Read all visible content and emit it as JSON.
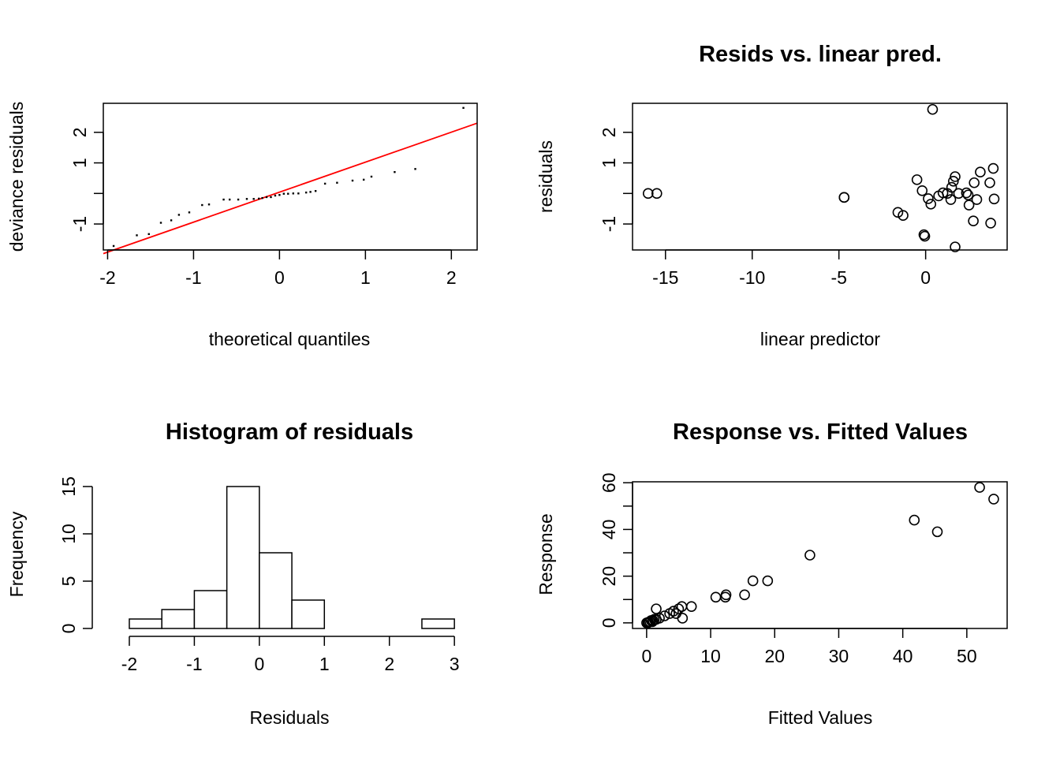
{
  "chart_data": [
    {
      "type": "scatter",
      "title": "",
      "xlabel": "theoretical quantiles",
      "ylabel": "deviance residuals",
      "xlim": [
        -2.05,
        2.3
      ],
      "ylim": [
        -1.85,
        2.95
      ],
      "x_ticks": [
        {
          "v": -2,
          "t": "-2"
        },
        {
          "v": -1,
          "t": "-1"
        },
        {
          "v": 0,
          "t": "0"
        },
        {
          "v": 1,
          "t": "1"
        },
        {
          "v": 2,
          "t": "2"
        }
      ],
      "y_ticks": [
        {
          "v": -1,
          "t": "-1"
        },
        {
          "v": 0,
          "t": ""
        },
        {
          "v": 1,
          "t": "1"
        },
        {
          "v": 2,
          "t": "2"
        }
      ],
      "points": [
        [
          -1.93,
          -1.72
        ],
        [
          -1.66,
          -1.37
        ],
        [
          -1.52,
          -1.33
        ],
        [
          -1.38,
          -0.96
        ],
        [
          -1.26,
          -0.88
        ],
        [
          -1.17,
          -0.7
        ],
        [
          -1.05,
          -0.62
        ],
        [
          -0.9,
          -0.38
        ],
        [
          -0.82,
          -0.36
        ],
        [
          -0.65,
          -0.2
        ],
        [
          -0.58,
          -0.2
        ],
        [
          -0.48,
          -0.2
        ],
        [
          -0.38,
          -0.18
        ],
        [
          -0.3,
          -0.18
        ],
        [
          -0.24,
          -0.17
        ],
        [
          -0.2,
          -0.15
        ],
        [
          -0.15,
          -0.12
        ],
        [
          -0.1,
          -0.12
        ],
        [
          -0.05,
          -0.07
        ],
        [
          0.0,
          -0.05
        ],
        [
          0.05,
          -0.01
        ],
        [
          0.1,
          -0.01
        ],
        [
          0.16,
          0.0
        ],
        [
          0.22,
          0.0
        ],
        [
          0.31,
          0.03
        ],
        [
          0.36,
          0.05
        ],
        [
          0.42,
          0.08
        ],
        [
          0.53,
          0.32
        ],
        [
          0.67,
          0.35
        ],
        [
          0.85,
          0.42
        ],
        [
          0.98,
          0.45
        ],
        [
          1.07,
          0.55
        ],
        [
          1.34,
          0.7
        ],
        [
          1.58,
          0.8
        ],
        [
          2.14,
          2.8
        ]
      ],
      "ref_line": [
        [
          -2.05,
          -1.97
        ],
        [
          2.3,
          2.3
        ]
      ],
      "colors": {
        "points": "#000000",
        "ref_line": "#ff0000"
      }
    },
    {
      "type": "scatter",
      "title": "Resids vs. linear pred.",
      "xlabel": "linear predictor",
      "ylabel": "residuals",
      "xlim": [
        -16.9,
        4.7
      ],
      "ylim": [
        -1.85,
        2.95
      ],
      "x_ticks": [
        {
          "v": -15,
          "t": "-15"
        },
        {
          "v": -10,
          "t": "-10"
        },
        {
          "v": -5,
          "t": "-5"
        },
        {
          "v": 0,
          "t": "0"
        }
      ],
      "y_ticks": [
        {
          "v": -1,
          "t": "-1"
        },
        {
          "v": 0,
          "t": ""
        },
        {
          "v": 1,
          "t": "1"
        },
        {
          "v": 2,
          "t": "2"
        }
      ],
      "points": [
        [
          -16.0,
          0.0
        ],
        [
          -15.5,
          0.0
        ],
        [
          -4.7,
          -0.13
        ],
        [
          -4.7,
          -0.13
        ],
        [
          -1.6,
          -0.62
        ],
        [
          -1.3,
          -0.72
        ],
        [
          -0.1,
          -1.35
        ],
        [
          -0.05,
          -1.4
        ],
        [
          -0.5,
          0.45
        ],
        [
          -0.2,
          0.09
        ],
        [
          0.15,
          -0.17
        ],
        [
          0.3,
          -0.35
        ],
        [
          0.75,
          -0.08
        ],
        [
          1.0,
          0.02
        ],
        [
          1.25,
          0.0
        ],
        [
          1.45,
          -0.2
        ],
        [
          1.5,
          0.2
        ],
        [
          1.6,
          0.4
        ],
        [
          1.7,
          0.55
        ],
        [
          1.7,
          -1.75
        ],
        [
          1.9,
          0.0
        ],
        [
          0.4,
          2.75
        ],
        [
          2.35,
          0.02
        ],
        [
          2.45,
          -0.05
        ],
        [
          2.5,
          -0.38
        ],
        [
          2.75,
          -0.9
        ],
        [
          2.8,
          0.35
        ],
        [
          2.95,
          -0.2
        ],
        [
          3.15,
          0.7
        ],
        [
          3.7,
          0.35
        ],
        [
          3.75,
          -0.97
        ],
        [
          3.9,
          0.82
        ],
        [
          3.95,
          -0.18
        ]
      ],
      "colors": {
        "points": "#000000"
      }
    },
    {
      "type": "bar",
      "title": "Histogram of residuals",
      "xlabel": "Residuals",
      "ylabel": "Frequency",
      "xlim": [
        -2.4,
        3.35
      ],
      "ylim": [
        0,
        15.5
      ],
      "x_ticks": [
        {
          "v": -2,
          "t": "-2"
        },
        {
          "v": -1,
          "t": "-1"
        },
        {
          "v": 0,
          "t": "0"
        },
        {
          "v": 1,
          "t": "1"
        },
        {
          "v": 2,
          "t": "2"
        },
        {
          "v": 3,
          "t": "3"
        }
      ],
      "y_ticks": [
        {
          "v": 0,
          "t": "0"
        },
        {
          "v": 5,
          "t": "5"
        },
        {
          "v": 10,
          "t": "10"
        },
        {
          "v": 15,
          "t": "15"
        }
      ],
      "bins": [
        {
          "from": -2.0,
          "to": -1.5,
          "count": 1
        },
        {
          "from": -1.5,
          "to": -1.0,
          "count": 2
        },
        {
          "from": -1.0,
          "to": -0.5,
          "count": 4
        },
        {
          "from": -0.5,
          "to": 0.0,
          "count": 15
        },
        {
          "from": 0.0,
          "to": 0.5,
          "count": 8
        },
        {
          "from": 0.5,
          "to": 1.0,
          "count": 3
        },
        {
          "from": 1.0,
          "to": 1.5,
          "count": 0
        },
        {
          "from": 1.5,
          "to": 2.0,
          "count": 0
        },
        {
          "from": 2.0,
          "to": 2.5,
          "count": 0
        },
        {
          "from": 2.5,
          "to": 3.0,
          "count": 1
        }
      ],
      "colors": {
        "bars_fill": "#ffffff",
        "bars_stroke": "#000000"
      }
    },
    {
      "type": "scatter",
      "title": "Response vs. Fitted Values",
      "xlabel": "Fitted Values",
      "ylabel": "Response",
      "xlim": [
        -2.2,
        56.3
      ],
      "ylim": [
        -2.4,
        60.4
      ],
      "x_ticks": [
        {
          "v": 0,
          "t": "0"
        },
        {
          "v": 10,
          "t": "10"
        },
        {
          "v": 20,
          "t": "20"
        },
        {
          "v": 30,
          "t": "30"
        },
        {
          "v": 40,
          "t": "40"
        },
        {
          "v": 50,
          "t": "50"
        }
      ],
      "y_ticks": [
        {
          "v": 0,
          "t": "0"
        },
        {
          "v": 10,
          "t": ""
        },
        {
          "v": 20,
          "t": "20"
        },
        {
          "v": 30,
          "t": ""
        },
        {
          "v": 40,
          "t": "40"
        },
        {
          "v": 50,
          "t": ""
        },
        {
          "v": 60,
          "t": "60"
        }
      ],
      "points": [
        [
          0.0,
          0.0
        ],
        [
          0.2,
          0.0
        ],
        [
          0.3,
          0.3
        ],
        [
          0.5,
          0.5
        ],
        [
          0.7,
          1.0
        ],
        [
          0.9,
          0.5
        ],
        [
          1.0,
          1.0
        ],
        [
          1.2,
          1.5
        ],
        [
          1.5,
          1.5
        ],
        [
          1.5,
          6.0
        ],
        [
          2.0,
          2.0
        ],
        [
          2.8,
          3.0
        ],
        [
          3.6,
          4.0
        ],
        [
          4.2,
          5.0
        ],
        [
          4.6,
          4.0
        ],
        [
          5.0,
          6.0
        ],
        [
          5.5,
          7.0
        ],
        [
          5.6,
          2.0
        ],
        [
          7.0,
          7.0
        ],
        [
          10.8,
          11.0
        ],
        [
          12.3,
          11.0
        ],
        [
          12.4,
          12.0
        ],
        [
          15.3,
          12.0
        ],
        [
          16.6,
          18.0
        ],
        [
          18.9,
          18.0
        ],
        [
          25.5,
          29.0
        ],
        [
          41.8,
          44.0
        ],
        [
          45.4,
          39.0
        ],
        [
          52.0,
          58.0
        ],
        [
          54.2,
          53.0
        ]
      ],
      "colors": {
        "points": "#000000"
      }
    }
  ]
}
